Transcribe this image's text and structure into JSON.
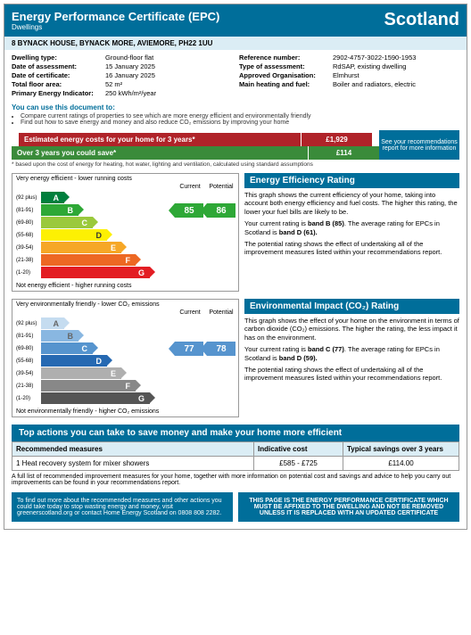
{
  "header": {
    "title": "Energy Performance Certificate (EPC)",
    "sub": "Dwellings",
    "region": "Scotland"
  },
  "address": "8 BYNACK HOUSE,  BYNACK MORE, AVIEMORE, PH22 1UU",
  "props_left": [
    {
      "l": "Dwelling type:",
      "v": "Ground-floor flat"
    },
    {
      "l": "Date of assessment:",
      "v": "15 January 2025"
    },
    {
      "l": "Date of certificate:",
      "v": "16 January 2025"
    },
    {
      "l": "Total floor area:",
      "v": "52 m²"
    },
    {
      "l": "Primary Energy Indicator:",
      "v": "250 kWh/m²/year"
    }
  ],
  "props_right": [
    {
      "l": "Reference number:",
      "v": "2902-4757-3022-1590-1953"
    },
    {
      "l": "Type of assessment:",
      "v": "RdSAP, existing dwelling"
    },
    {
      "l": "Approved Organisation:",
      "v": "Elmhurst"
    },
    {
      "l": "Main heating and fuel:",
      "v": "Boiler and radiators, electric"
    }
  ],
  "usage": {
    "t": "You can use this document to:",
    "b1": "Compare current ratings of properties to see which are more energy efficient and environmentally friendly",
    "b2": "Find out how to save energy and money and also reduce CO₂ emissions by improving your home"
  },
  "cost": {
    "l1": "Estimated energy costs for your home for 3 years*",
    "v1": "£1,929",
    "l2": "Over 3 years you could save*",
    "v2": "£114",
    "rec": "See your recommendations report for more information"
  },
  "footnote": "* based upon the cost of energy for heating, hot water, lighting and ventilation, calculated using standard assumptions",
  "eer": {
    "title": "Energy Efficiency Rating",
    "cap_top": "Very energy efficient - lower running costs",
    "cap_bot": "Not energy efficient - higher running costs",
    "col_c": "Current",
    "col_p": "Potential",
    "current": "85",
    "potential": "86",
    "bands": [
      {
        "r": "(92 plus)",
        "l": "A",
        "c": "eA"
      },
      {
        "r": "(81-91)",
        "l": "B",
        "c": "eB"
      },
      {
        "r": "(69-80)",
        "l": "C",
        "c": "eC"
      },
      {
        "r": "(55-68)",
        "l": "D",
        "c": "eD"
      },
      {
        "r": "(39-54)",
        "l": "E",
        "c": "eE"
      },
      {
        "r": "(21-38)",
        "l": "F",
        "c": "eF"
      },
      {
        "r": "(1-20)",
        "l": "G",
        "c": "eG"
      }
    ],
    "p1": "This graph shows the current efficiency of your home, taking into account both energy efficiency and fuel costs. The higher this rating, the lower your fuel bills are likely to be.",
    "p2a": "Your current rating is ",
    "p2b": "band B (85)",
    "p2c": ". The average rating for EPCs in Scotland is ",
    "p2d": "band D (61).",
    "p3": "The potential rating shows the effect of undertaking all of the improvement measures listed within your recommendations report."
  },
  "eir": {
    "title": "Environmental Impact (CO₂) Rating",
    "cap_top": "Very environmentally friendly - lower CO₂ emissions",
    "cap_bot": "Not environmentally friendly - higher CO₂ emissions",
    "current": "77",
    "potential": "78",
    "p1": "This graph shows the effect of your home on the environment in terms of carbon dioxide (CO₂) emissions. The higher the rating, the less impact it has on the environment.",
    "p2a": "Your current rating is ",
    "p2b": "band C (77)",
    "p2c": ". The average rating for EPCs in Scotland is ",
    "p2d": "band D (59).",
    "p3": "The potential rating shows the effect of undertaking all of the improvement measures listed within your recommendations report."
  },
  "actions": {
    "title": "Top actions you can take to save money and make your home more efficient",
    "h1": "Recommended measures",
    "h2": "Indicative cost",
    "h3": "Typical savings over 3 years",
    "r1": {
      "m": "1 Heat recovery system for mixer showers",
      "c": "£585 - £725",
      "s": "£114.00"
    },
    "full": "A full list of recommended improvement measures for your home, together with more information on potential cost and savings and advice to help you carry out improvements can be found in your recommendations report."
  },
  "footer": {
    "l": "To find out more about the recommended measures and other actions you could take today to stop wasting energy and money, visit greenerscotland.org or contact Home Energy Scotland on 0808 808 2282.",
    "r": "THIS PAGE IS THE ENERGY PERFORMANCE CERTIFICATE WHICH MUST BE AFFIXED TO THE DWELLING AND NOT BE REMOVED UNLESS IT IS REPLACED WITH AN UPDATED CERTIFICATE"
  }
}
